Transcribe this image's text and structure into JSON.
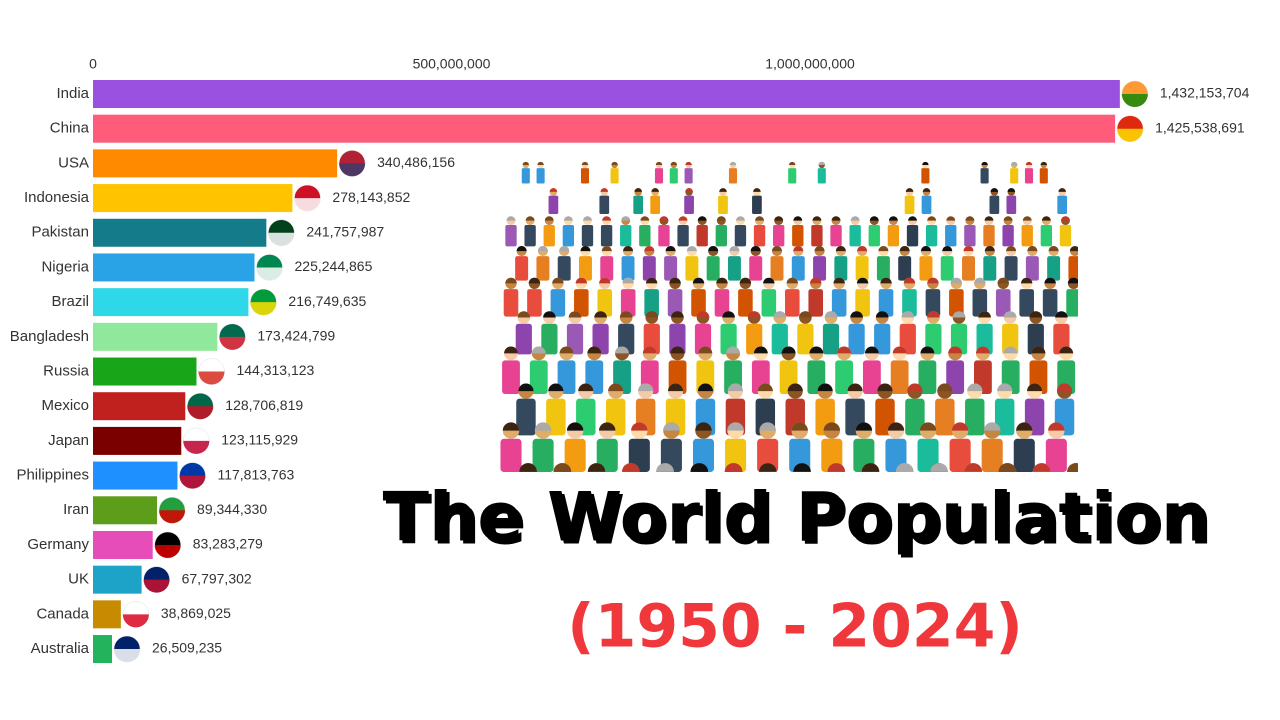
{
  "chart_data": {
    "type": "bar",
    "orientation": "horizontal",
    "title": "The World Population",
    "subtitle": "(1950 - 2024)",
    "categories": [
      "India",
      "China",
      "USA",
      "Indonesia",
      "Pakistan",
      "Nigeria",
      "Brazil",
      "Bangladesh",
      "Russia",
      "Mexico",
      "Japan",
      "Philippines",
      "Iran",
      "Germany",
      "UK",
      "Canada",
      "Australia"
    ],
    "values": [
      1432153704,
      1425538691,
      340486156,
      278143852,
      241757987,
      225244865,
      216749635,
      173424799,
      144313123,
      128706819,
      123115929,
      117813763,
      89344330,
      83283279,
      67797302,
      38869025,
      26509235
    ],
    "value_labels": [
      "1,432,153,704",
      "1,425,538,691",
      "340,486,156",
      "278,143,852",
      "241,757,987",
      "225,244,865",
      "216,749,635",
      "173,424,799",
      "144,313,123",
      "128,706,819",
      "123,115,929",
      "117,813,763",
      "89,344,330",
      "83,283,279",
      "67,797,302",
      "38,869,025",
      "26,509,235"
    ],
    "colors": [
      "#9b51e0",
      "#ff5c7c",
      "#ff8a00",
      "#ffc300",
      "#137b8a",
      "#29a3e6",
      "#2fd8e8",
      "#8fe89c",
      "#18a518",
      "#c0201e",
      "#7a0000",
      "#1e90ff",
      "#5c9e1a",
      "#e64db8",
      "#1ea3c8",
      "#c88a00",
      "#22b35c"
    ],
    "xlim": [
      0,
      1500000000
    ],
    "xticks": [
      0,
      {
        "value": 500000000,
        "label": "500,000,000"
      },
      {
        "value": 1000000000,
        "label": "1,000,000,000"
      }
    ]
  }
}
